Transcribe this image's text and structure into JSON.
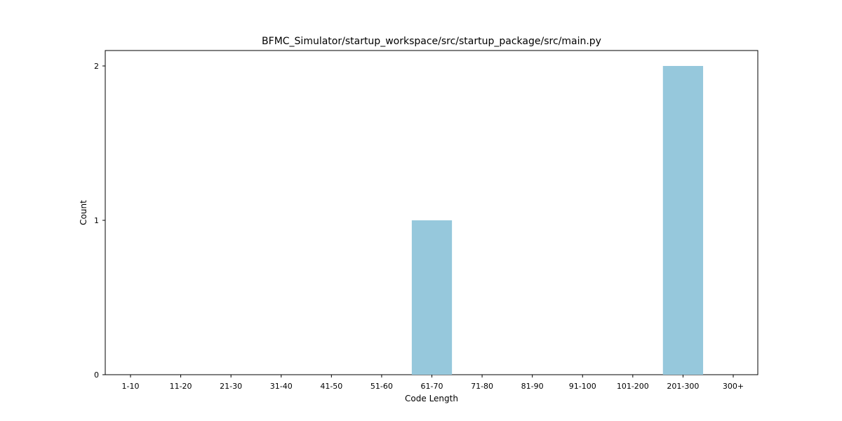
{
  "chart_data": {
    "type": "bar",
    "title": "BFMC_Simulator/startup_workspace/src/startup_package/src/main.py",
    "xlabel": "Code Length",
    "ylabel": "Count",
    "categories": [
      "1-10",
      "11-20",
      "21-30",
      "31-40",
      "41-50",
      "51-60",
      "61-70",
      "71-80",
      "81-90",
      "91-100",
      "101-200",
      "201-300",
      "300+"
    ],
    "values": [
      0,
      0,
      0,
      0,
      0,
      0,
      1,
      0,
      0,
      0,
      0,
      2,
      0
    ],
    "ylim": [
      0,
      2.1
    ],
    "yticks": [
      0,
      1,
      2
    ],
    "bar_color": "#96c8dc",
    "grid": false
  }
}
